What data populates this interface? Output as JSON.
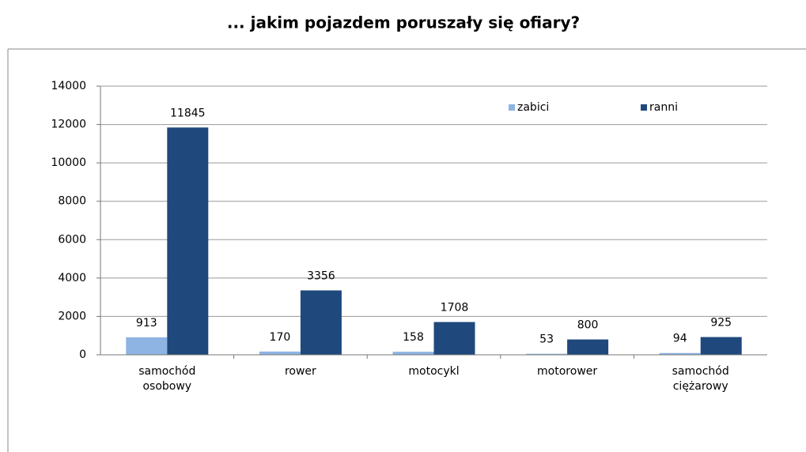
{
  "chart_data": {
    "type": "bar",
    "title": "... jakim pojazdem poruszały się ofiary?",
    "categories": [
      "samochód osobowy",
      "rower",
      "motocykl",
      "motorower",
      "samochód ciężarowy"
    ],
    "series": [
      {
        "name": "zabici",
        "color": "#8db4e2",
        "values": [
          913,
          170,
          158,
          53,
          94
        ]
      },
      {
        "name": "ranni",
        "color": "#1f497d",
        "values": [
          11845,
          3356,
          1708,
          800,
          925
        ]
      }
    ],
    "ylim": [
      0,
      14000
    ],
    "yticks": [
      0,
      2000,
      4000,
      6000,
      8000,
      10000,
      12000,
      14000
    ],
    "grid": true,
    "legend": "upper right"
  }
}
